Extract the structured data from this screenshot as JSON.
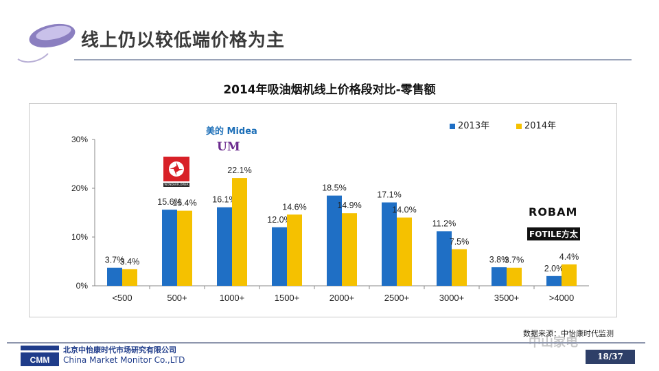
{
  "slide": {
    "title": "线上仍以较低端价格为主",
    "page": "18/37",
    "source": "数据来源：中怡康时代监测",
    "company_zh": "北京中怡康时代市场研究有限公司",
    "company_en": "China Market Monitor Co.,LTD",
    "logo_text": "CMM",
    "watermark": "中山家电"
  },
  "brands": {
    "midea": "美的 Midea",
    "um": "UM",
    "wonderflower": "WONDERFLOWER",
    "robam": "ROBAM",
    "fotile": "FOTILE方太"
  },
  "colors": {
    "s2013": "#1f6fc5",
    "s2014": "#f5c100"
  },
  "chart_data": {
    "type": "bar",
    "title": "2014年吸油烟机线上价格段对比-零售额",
    "categories": [
      "<500",
      "500+",
      "1000+",
      "1500+",
      "2000+",
      "2500+",
      "3000+",
      "3500+",
      ">4000"
    ],
    "series": [
      {
        "name": "2013年",
        "values": [
          3.7,
          15.6,
          16.1,
          12.0,
          18.5,
          17.1,
          11.2,
          3.8,
          2.0
        ],
        "labels": [
          "3.7%",
          "15.6%",
          "16.1%",
          "12.0%",
          "18.5%",
          "17.1%",
          "11.2%",
          "3.8%",
          "2.0%"
        ]
      },
      {
        "name": "2014年",
        "values": [
          3.4,
          15.4,
          22.1,
          14.6,
          14.9,
          14.0,
          7.5,
          3.7,
          4.4
        ],
        "labels": [
          "3.4%",
          "15.4%",
          "22.1%",
          "14.6%",
          "14.9%",
          "14.0%",
          "7.5%",
          "3.7%",
          "4.4%"
        ]
      }
    ],
    "yticks": [
      "0%",
      "10%",
      "20%",
      "30%"
    ],
    "ylim": [
      0,
      30
    ],
    "grid": false
  }
}
